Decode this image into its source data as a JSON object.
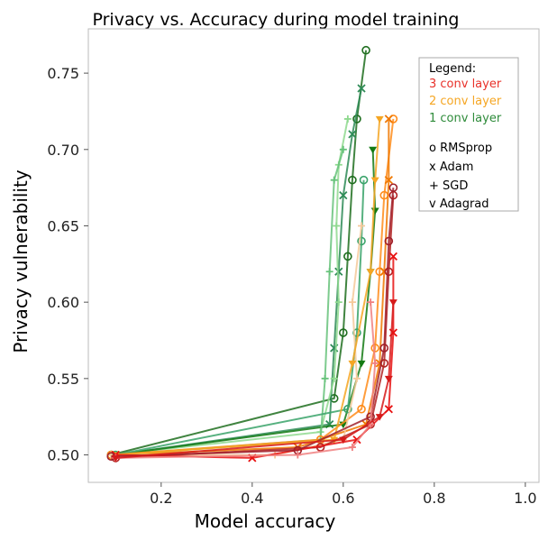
{
  "chart_data": {
    "type": "line",
    "title": "Privacy vs. Accuracy during model training",
    "xlabel": "Model accuracy",
    "ylabel": "Privacy vulnerability",
    "xlim": [
      0.04,
      1.03
    ],
    "ylim": [
      0.482,
      0.779
    ],
    "xticks": [
      0.2,
      0.4,
      0.6,
      0.8,
      1.0
    ],
    "xtick_labels": [
      "0.2",
      "0.4",
      "0.6",
      "0.8",
      "1.0"
    ],
    "yticks": [
      0.5,
      0.55,
      0.6,
      0.65,
      0.7,
      0.75
    ],
    "ytick_labels": [
      "0.50",
      "0.55",
      "0.60",
      "0.65",
      "0.70",
      "0.75"
    ],
    "grid": false,
    "legend": {
      "placement": "top-right",
      "title": "Legend:",
      "entries": [
        {
          "label": "3 conv layer",
          "color": "#e8312a"
        },
        {
          "label": "2 conv layer",
          "color": "#f5a623"
        },
        {
          "label": "1 conv layer",
          "color": "#2e8b3a"
        },
        {
          "label": "o  RMSprop",
          "color": "#000000"
        },
        {
          "label": "x  Adam",
          "color": "#000000"
        },
        {
          "label": "+  SGD",
          "color": "#000000"
        },
        {
          "label": "v  Adagrad",
          "color": "#000000"
        }
      ]
    },
    "series": [
      {
        "name": "1 conv RMSprop",
        "layers": 1,
        "marker": "o",
        "color": "#1f6e1f",
        "points": [
          [
            0.09,
            0.5
          ],
          [
            0.58,
            0.537
          ],
          [
            0.6,
            0.58
          ],
          [
            0.61,
            0.63
          ],
          [
            0.62,
            0.68
          ],
          [
            0.63,
            0.72
          ],
          [
            0.65,
            0.765
          ]
        ]
      },
      {
        "name": "1 conv Adam",
        "layers": 1,
        "marker": "x",
        "color": "#2e8b57",
        "points": [
          [
            0.1,
            0.5
          ],
          [
            0.57,
            0.52
          ],
          [
            0.58,
            0.57
          ],
          [
            0.59,
            0.62
          ],
          [
            0.6,
            0.67
          ],
          [
            0.62,
            0.71
          ],
          [
            0.64,
            0.74
          ]
        ]
      },
      {
        "name": "1 conv SGD",
        "layers": 1,
        "marker": "+",
        "color": "#8fd98f",
        "points": [
          [
            0.09,
            0.5
          ],
          [
            0.55,
            0.515
          ],
          [
            0.58,
            0.55
          ],
          [
            0.59,
            0.6
          ],
          [
            0.585,
            0.65
          ],
          [
            0.59,
            0.69
          ],
          [
            0.61,
            0.72
          ]
        ]
      },
      {
        "name": "1 conv Adagrad",
        "layers": 1,
        "marker": "v",
        "color": "#137a13",
        "points": [
          [
            0.1,
            0.5
          ],
          [
            0.6,
            0.52
          ],
          [
            0.64,
            0.56
          ],
          [
            0.66,
            0.62
          ],
          [
            0.67,
            0.66
          ],
          [
            0.665,
            0.7
          ]
        ]
      },
      {
        "name": "1 conv SGD b",
        "layers": 1,
        "marker": "+",
        "color": "#66c27a",
        "points": [
          [
            0.1,
            0.5
          ],
          [
            0.55,
            0.51
          ],
          [
            0.56,
            0.55
          ],
          [
            0.57,
            0.62
          ],
          [
            0.58,
            0.68
          ],
          [
            0.6,
            0.7
          ]
        ]
      },
      {
        "name": "1 conv RMSprop b",
        "layers": 1,
        "marker": "o",
        "color": "#3aa36a",
        "points": [
          [
            0.1,
            0.5
          ],
          [
            0.61,
            0.53
          ],
          [
            0.63,
            0.58
          ],
          [
            0.64,
            0.64
          ],
          [
            0.645,
            0.68
          ]
        ]
      },
      {
        "name": "2 conv RMSprop",
        "layers": 2,
        "marker": "o",
        "color": "#ff8c1a",
        "points": [
          [
            0.09,
            0.5
          ],
          [
            0.55,
            0.51
          ],
          [
            0.64,
            0.53
          ],
          [
            0.67,
            0.57
          ],
          [
            0.68,
            0.62
          ],
          [
            0.69,
            0.67
          ],
          [
            0.71,
            0.72
          ]
        ]
      },
      {
        "name": "2 conv Adam",
        "layers": 2,
        "marker": "x",
        "color": "#f07800",
        "points": [
          [
            0.1,
            0.5
          ],
          [
            0.5,
            0.505
          ],
          [
            0.65,
            0.52
          ],
          [
            0.68,
            0.56
          ],
          [
            0.69,
            0.62
          ],
          [
            0.7,
            0.68
          ],
          [
            0.7,
            0.72
          ]
        ]
      },
      {
        "name": "2 conv SGD",
        "layers": 2,
        "marker": "+",
        "color": "#f5c99a",
        "points": [
          [
            0.09,
            0.5
          ],
          [
            0.45,
            0.5
          ],
          [
            0.6,
            0.51
          ],
          [
            0.63,
            0.55
          ],
          [
            0.62,
            0.6
          ],
          [
            0.64,
            0.65
          ]
        ]
      },
      {
        "name": "2 conv Adagrad",
        "layers": 2,
        "marker": "v",
        "color": "#f5a623",
        "points": [
          [
            0.1,
            0.5
          ],
          [
            0.58,
            0.51
          ],
          [
            0.62,
            0.56
          ],
          [
            0.66,
            0.62
          ],
          [
            0.67,
            0.68
          ],
          [
            0.68,
            0.72
          ]
        ]
      },
      {
        "name": "3 conv RMSprop",
        "layers": 3,
        "marker": "o",
        "color": "#b22222",
        "points": [
          [
            0.1,
            0.498
          ],
          [
            0.55,
            0.505
          ],
          [
            0.66,
            0.52
          ],
          [
            0.69,
            0.56
          ],
          [
            0.7,
            0.62
          ],
          [
            0.71,
            0.67
          ]
        ]
      },
      {
        "name": "3 conv Adam",
        "layers": 3,
        "marker": "x",
        "color": "#e81010",
        "points": [
          [
            0.1,
            0.5
          ],
          [
            0.4,
            0.498
          ],
          [
            0.63,
            0.51
          ],
          [
            0.7,
            0.53
          ],
          [
            0.71,
            0.58
          ],
          [
            0.71,
            0.63
          ]
        ]
      },
      {
        "name": "3 conv RMSprop b",
        "layers": 3,
        "marker": "o",
        "color": "#a0202a",
        "points": [
          [
            0.09,
            0.499
          ],
          [
            0.5,
            0.503
          ],
          [
            0.66,
            0.525
          ],
          [
            0.69,
            0.57
          ],
          [
            0.7,
            0.64
          ],
          [
            0.71,
            0.675
          ]
        ]
      },
      {
        "name": "3 conv SGD",
        "layers": 3,
        "marker": "+",
        "color": "#f08080",
        "points": [
          [
            0.1,
            0.498
          ],
          [
            0.5,
            0.5
          ],
          [
            0.62,
            0.505
          ],
          [
            0.66,
            0.52
          ],
          [
            0.67,
            0.56
          ],
          [
            0.66,
            0.6
          ]
        ]
      },
      {
        "name": "3 conv Adagrad",
        "layers": 3,
        "marker": "v",
        "color": "#d61a1a",
        "points": [
          [
            0.1,
            0.498
          ],
          [
            0.6,
            0.51
          ],
          [
            0.68,
            0.525
          ],
          [
            0.7,
            0.55
          ],
          [
            0.71,
            0.6
          ]
        ]
      }
    ]
  }
}
